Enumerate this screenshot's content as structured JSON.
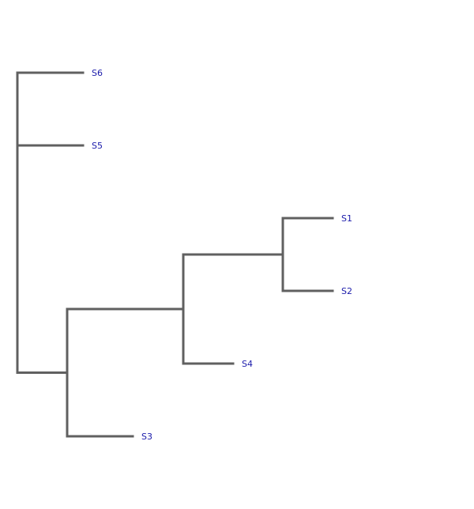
{
  "tree": {
    "branch_color": "#606060",
    "label_color": "#1a1aaa",
    "leaves": [
      {
        "id": "S6",
        "label": "S6"
      },
      {
        "id": "S5",
        "label": "S5"
      },
      {
        "id": "S1",
        "label": "S1"
      },
      {
        "id": "S2",
        "label": "S2"
      },
      {
        "id": "S4",
        "label": "S4"
      },
      {
        "id": "S3",
        "label": "S3"
      }
    ],
    "topology": {
      "children": [
        {
          "leaf": "S6"
        },
        {
          "leaf": "S5"
        },
        {
          "children": [
            {
              "children": [
                {
                  "children": [
                    {
                      "leaf": "S1"
                    },
                    {
                      "leaf": "S2"
                    }
                  ]
                },
                {
                  "leaf": "S4"
                }
              ]
            },
            {
              "leaf": "S3"
            }
          ]
        }
      ]
    }
  }
}
